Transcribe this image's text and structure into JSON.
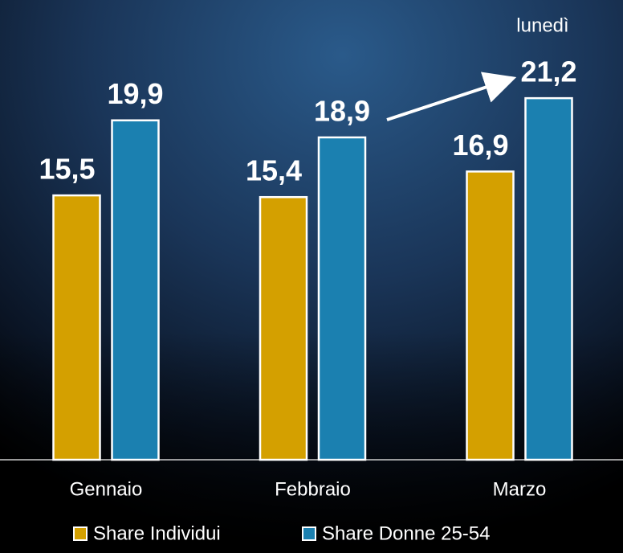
{
  "chart_data": {
    "type": "bar",
    "categories": [
      "Gennaio",
      "Febbraio",
      "Marzo"
    ],
    "series": [
      {
        "name": "Share Individui",
        "color": "#d4a000",
        "values": [
          15.5,
          15.4,
          16.9
        ],
        "value_labels": [
          "15,5",
          "15,4",
          "16,9"
        ]
      },
      {
        "name": "Share Donne 25-54",
        "color": "#1b80b0",
        "values": [
          19.9,
          18.9,
          21.2
        ],
        "value_labels": [
          "19,9",
          "18,9",
          "21,2"
        ]
      }
    ],
    "annotation": "lunedì"
  }
}
